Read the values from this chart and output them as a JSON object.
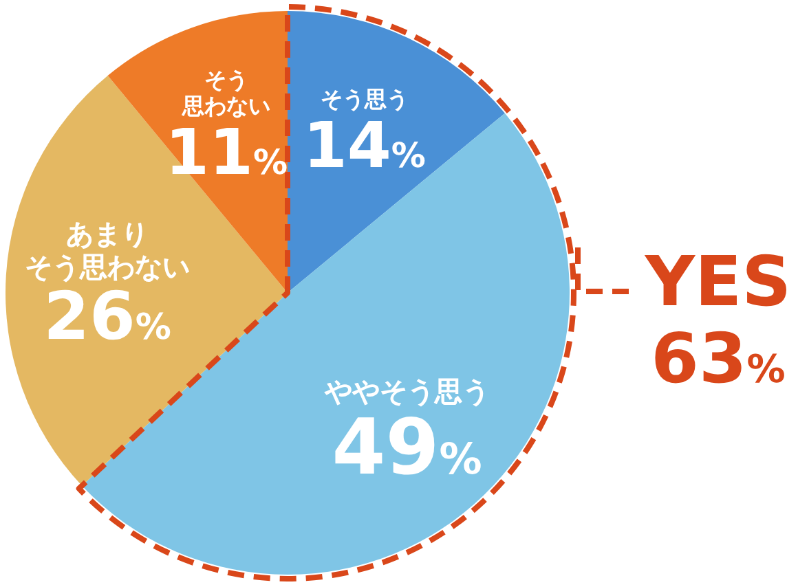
{
  "chart_data": {
    "type": "pie",
    "categories": [
      "そう思う",
      "ややそう思う",
      "あまりそう思わない",
      "そう思わない"
    ],
    "values": [
      14,
      49,
      26,
      11
    ],
    "colors": [
      "#4a90d6",
      "#7fc5e6",
      "#e4b862",
      "#ee7b28"
    ],
    "value_labels": [
      "14%",
      "49%",
      "26%",
      "11%"
    ],
    "annotations": [
      "YES 63%"
    ]
  }
}
